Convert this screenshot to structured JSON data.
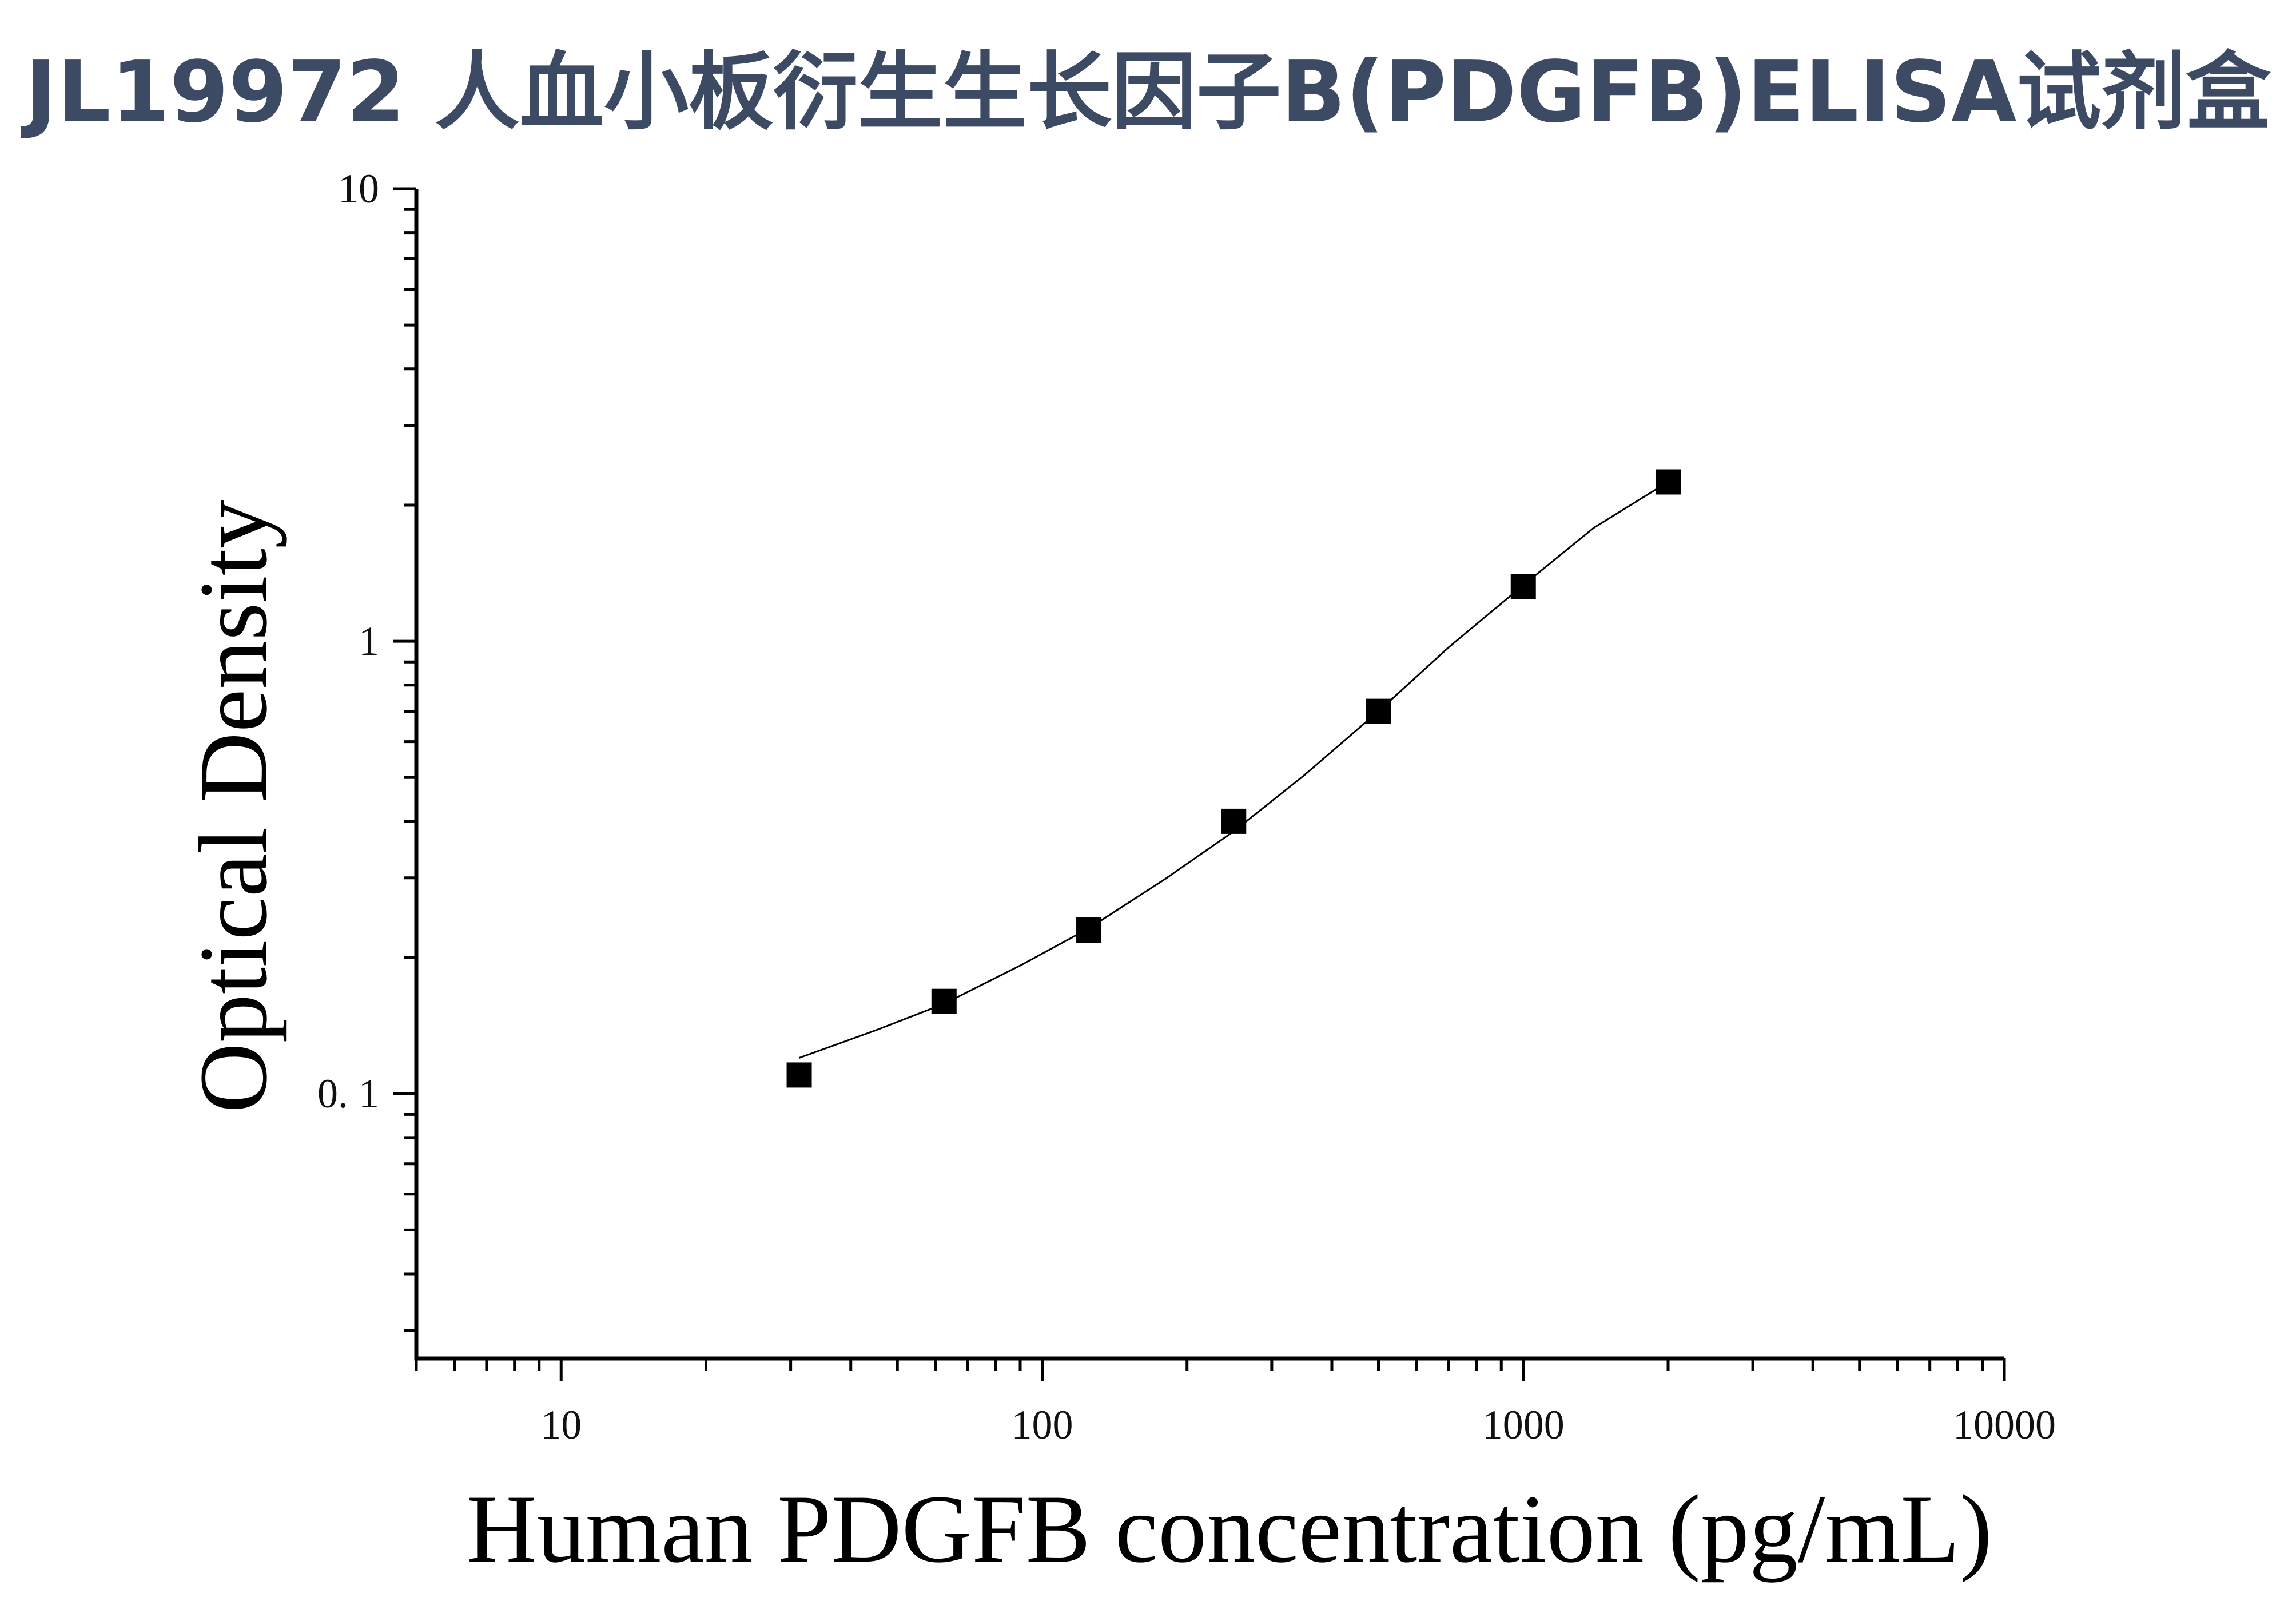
{
  "title": "JL19972 人血小板衍生生长因子B(PDGFB)ELISA试剂盒",
  "chart_data": {
    "type": "scatter",
    "xlabel": "Human PDGFB concentration (pg/mL)",
    "ylabel": "Optical Density",
    "xscale": "log",
    "yscale": "log",
    "xlim": [
      5,
      10000
    ],
    "ylim": [
      0.026,
      10
    ],
    "x_ticks": [
      10,
      100,
      1000,
      10000
    ],
    "x_tick_labels": [
      "10",
      "100",
      "1000",
      "10000"
    ],
    "y_ticks": [
      0.1,
      1,
      10
    ],
    "y_tick_labels": [
      "0. 1",
      "1",
      "10"
    ],
    "series": [
      {
        "x": [
          31.25,
          62.5,
          125,
          250,
          500,
          1000,
          2000
        ],
        "y": [
          0.11,
          0.16,
          0.23,
          0.4,
          0.7,
          1.32,
          2.25
        ],
        "marker": "square",
        "color": "#000000"
      }
    ],
    "fit_curve": {
      "x": [
        31.25,
        45,
        62.5,
        90,
        125,
        180,
        250,
        350,
        500,
        700,
        1000,
        1400,
        2000
      ],
      "y": [
        0.12,
        0.138,
        0.158,
        0.192,
        0.232,
        0.298,
        0.38,
        0.505,
        0.7,
        0.97,
        1.33,
        1.78,
        2.25
      ],
      "color": "#000000"
    },
    "grid": false,
    "legend": "none"
  }
}
